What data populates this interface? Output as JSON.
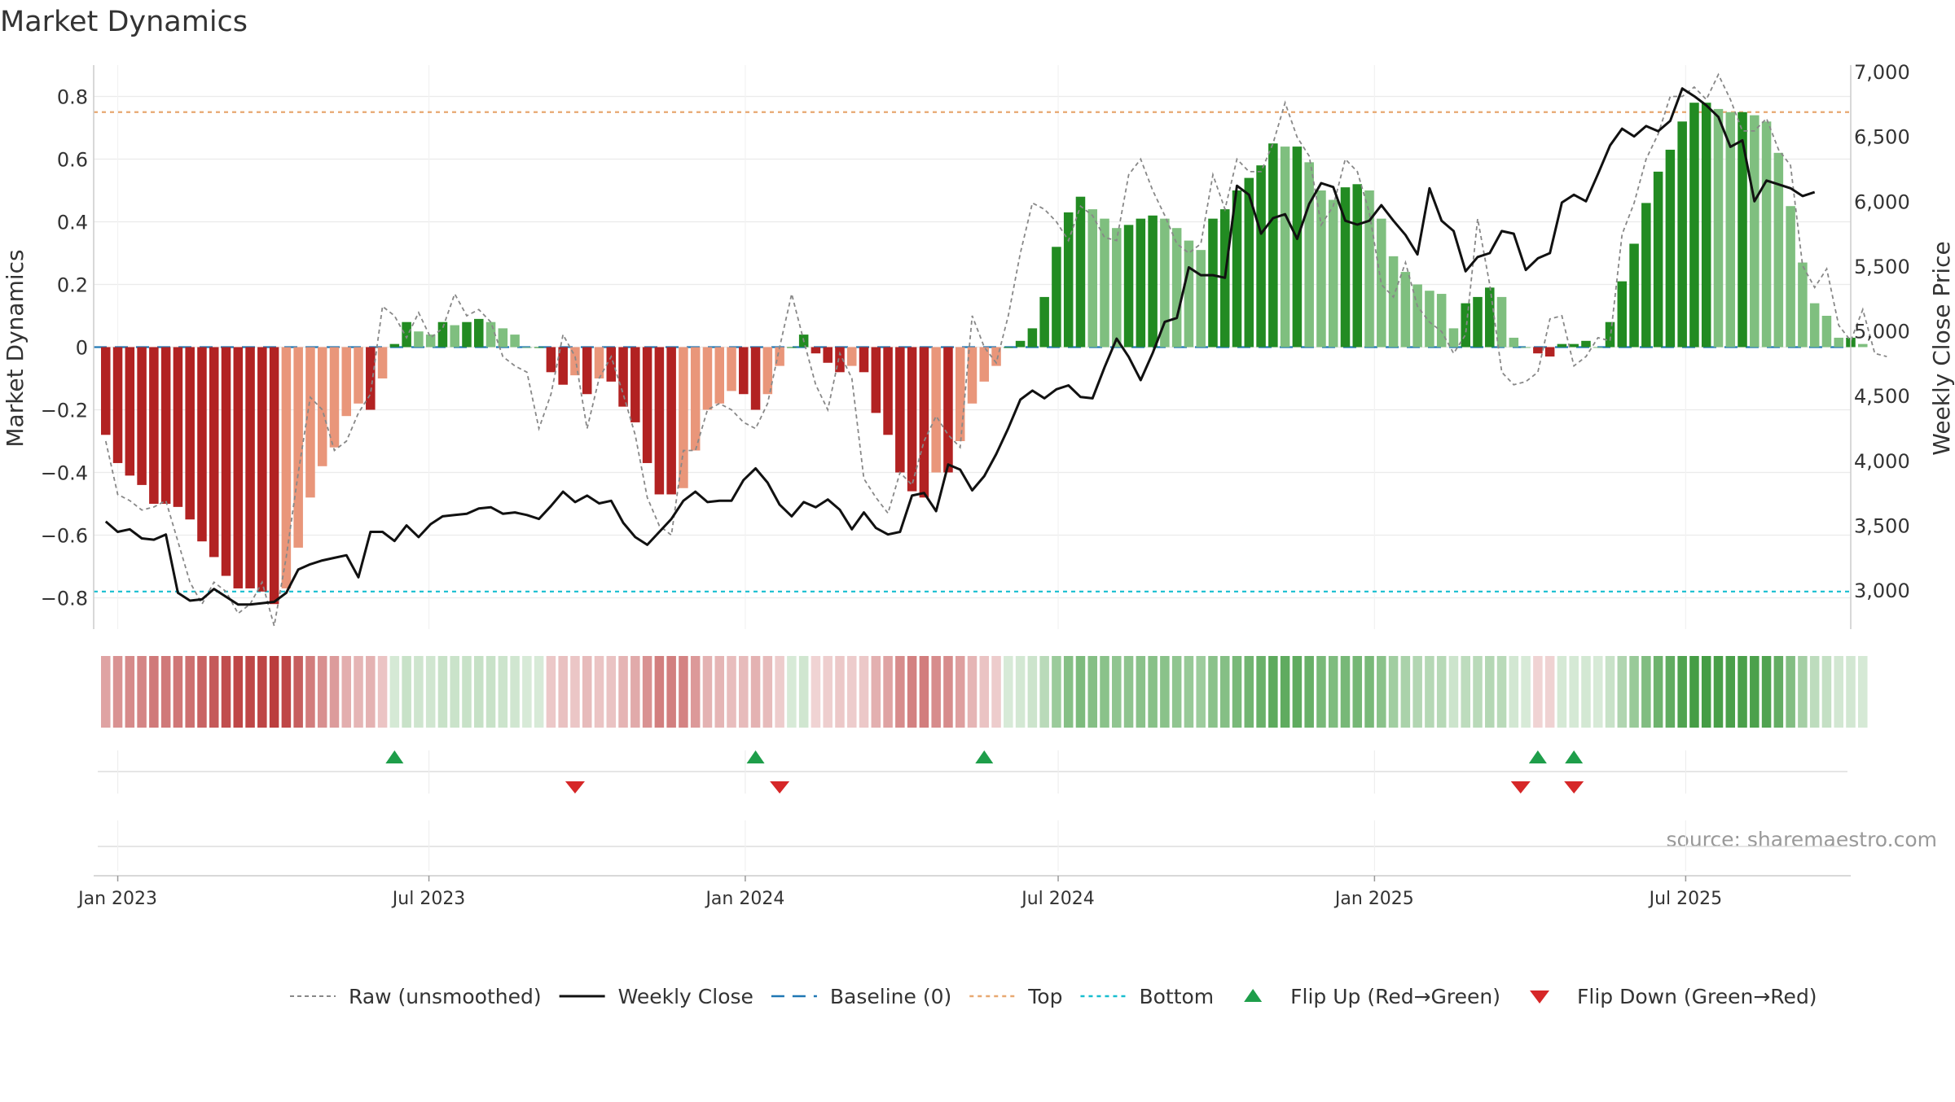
{
  "title": "Market Dynamics",
  "source": "source: sharemaestro.com",
  "colors": {
    "deep_red": "#b22222",
    "light_red": "#e9967a",
    "deep_green": "#228b22",
    "light_green": "#7fbf7f",
    "close_line": "#111111",
    "raw_line": "#888888",
    "baseline": "#1f77b4",
    "top": "#e8a870",
    "bottom": "#17becf",
    "flip_up": "#1e9e4a",
    "flip_down": "#d62728"
  },
  "chart_data": {
    "type": "bar",
    "title": "Market Dynamics",
    "xlabel": "",
    "ylabel": "Market Dynamics",
    "y2label": "Weekly Close Price",
    "ylim": [
      -0.9,
      0.9
    ],
    "y2lim": [
      2700,
      7050
    ],
    "yticks": [
      "0.8",
      "0.6",
      "0.4",
      "0.2",
      "0",
      "−0.2",
      "−0.4",
      "−0.6",
      "−0.8"
    ],
    "y2ticks": [
      "7,000",
      "6,500",
      "6,000",
      "5,500",
      "5,000",
      "4,500",
      "4,000",
      "3,500",
      "3,000"
    ],
    "xticks": [
      "Jan 2023",
      "Jul 2023",
      "Jan 2024",
      "Jul 2024",
      "Jan 2025",
      "Jul 2025"
    ],
    "xtick_dates": [
      "2023-01-01",
      "2023-07-01",
      "2024-01-01",
      "2024-07-01",
      "2025-01-01",
      "2025-07-01"
    ],
    "xlim": [
      "2022-12-18",
      "2025-10-05"
    ],
    "first_week": "2022-12-25",
    "top": 0.75,
    "bottom": -0.78,
    "baseline": 0,
    "grid": true,
    "legend_position": "bottom-center",
    "legend": [
      {
        "label": "Raw (unsmoothed)",
        "kind": "raw"
      },
      {
        "label": "Weekly Close",
        "kind": "close"
      },
      {
        "label": "Baseline (0)",
        "kind": "baseline"
      },
      {
        "label": "Top",
        "kind": "top"
      },
      {
        "label": "Bottom",
        "kind": "bottom"
      },
      {
        "label": "Flip Up (Red→Green)",
        "kind": "flipup"
      },
      {
        "label": "Flip Down (Green→Red)",
        "kind": "flipdown"
      }
    ],
    "dynamics": [
      -0.28,
      -0.37,
      -0.41,
      -0.44,
      -0.5,
      -0.5,
      -0.51,
      -0.55,
      -0.62,
      -0.67,
      -0.73,
      -0.77,
      -0.77,
      -0.78,
      -0.82,
      -0.77,
      -0.64,
      -0.48,
      -0.38,
      -0.32,
      -0.22,
      -0.18,
      -0.2,
      -0.1,
      0.01,
      0.08,
      0.05,
      0.04,
      0.08,
      0.07,
      0.08,
      0.09,
      0.08,
      0.06,
      0.04,
      0.0,
      0.0,
      -0.08,
      -0.12,
      -0.09,
      -0.15,
      -0.1,
      -0.11,
      -0.19,
      -0.24,
      -0.37,
      -0.47,
      -0.47,
      -0.45,
      -0.33,
      -0.2,
      -0.18,
      -0.14,
      -0.15,
      -0.2,
      -0.15,
      -0.06,
      0.0,
      0.04,
      -0.02,
      -0.05,
      -0.08,
      -0.06,
      -0.08,
      -0.21,
      -0.28,
      -0.4,
      -0.46,
      -0.48,
      -0.4,
      -0.4,
      -0.3,
      -0.18,
      -0.11,
      -0.06,
      0.0,
      0.02,
      0.06,
      0.16,
      0.32,
      0.43,
      0.48,
      0.44,
      0.41,
      0.38,
      0.39,
      0.41,
      0.42,
      0.41,
      0.38,
      0.34,
      0.31,
      0.41,
      0.44,
      0.5,
      0.54,
      0.58,
      0.65,
      0.64,
      0.64,
      0.59,
      0.5,
      0.47,
      0.51,
      0.52,
      0.5,
      0.41,
      0.29,
      0.24,
      0.2,
      0.18,
      0.17,
      0.06,
      0.14,
      0.16,
      0.19,
      0.16,
      0.03,
      0.0,
      -0.02,
      -0.03,
      0.01,
      0.01,
      0.02,
      0.0,
      0.08,
      0.21,
      0.33,
      0.46,
      0.56,
      0.63,
      0.72,
      0.78,
      0.78,
      0.76,
      0.75,
      0.75,
      0.74,
      0.72,
      0.62,
      0.45,
      0.27,
      0.14,
      0.1,
      0.03,
      0.03,
      0.01
    ],
    "raw": [
      -0.3,
      -0.47,
      -0.49,
      -0.52,
      -0.51,
      -0.49,
      -0.62,
      -0.75,
      -0.82,
      -0.75,
      -0.78,
      -0.85,
      -0.82,
      -0.75,
      -0.89,
      -0.67,
      -0.4,
      -0.16,
      -0.2,
      -0.33,
      -0.3,
      -0.21,
      -0.15,
      0.13,
      0.1,
      0.03,
      0.11,
      0.03,
      0.06,
      0.17,
      0.1,
      0.12,
      0.08,
      -0.03,
      -0.06,
      -0.08,
      -0.26,
      -0.15,
      0.04,
      -0.03,
      -0.26,
      -0.1,
      -0.03,
      -0.15,
      -0.28,
      -0.48,
      -0.57,
      -0.6,
      -0.33,
      -0.33,
      -0.2,
      -0.18,
      -0.2,
      -0.24,
      -0.26,
      -0.18,
      0.0,
      0.17,
      0.02,
      -0.12,
      -0.2,
      -0.02,
      -0.1,
      -0.42,
      -0.48,
      -0.53,
      -0.4,
      -0.44,
      -0.3,
      -0.22,
      -0.28,
      -0.32,
      0.1,
      0.0,
      -0.05,
      0.1,
      0.3,
      0.46,
      0.44,
      0.4,
      0.34,
      0.45,
      0.42,
      0.35,
      0.34,
      0.55,
      0.6,
      0.5,
      0.42,
      0.33,
      0.3,
      0.33,
      0.55,
      0.44,
      0.6,
      0.56,
      0.56,
      0.65,
      0.78,
      0.67,
      0.61,
      0.39,
      0.45,
      0.6,
      0.56,
      0.43,
      0.2,
      0.16,
      0.27,
      0.13,
      0.08,
      0.05,
      -0.02,
      0.04,
      0.41,
      0.2,
      -0.08,
      -0.12,
      -0.11,
      -0.08,
      0.09,
      0.1,
      -0.06,
      -0.03,
      0.03,
      0.02,
      0.36,
      0.46,
      0.6,
      0.68,
      0.8,
      0.8,
      0.83,
      0.79,
      0.87,
      0.79,
      0.69,
      0.69,
      0.73,
      0.63,
      0.58,
      0.26,
      0.19,
      0.25,
      0.07,
      0.02,
      0.12,
      -0.02,
      -0.03
    ],
    "close": [
      3530,
      3450,
      3470,
      3400,
      3390,
      3430,
      2980,
      2920,
      2930,
      3010,
      2950,
      2890,
      2890,
      2900,
      2910,
      2980,
      3160,
      3200,
      3230,
      3250,
      3270,
      3100,
      3450,
      3450,
      3380,
      3500,
      3410,
      3510,
      3570,
      3580,
      3590,
      3630,
      3640,
      3590,
      3600,
      3580,
      3550,
      3650,
      3760,
      3680,
      3730,
      3670,
      3690,
      3520,
      3410,
      3350,
      3450,
      3550,
      3690,
      3760,
      3680,
      3690,
      3690,
      3850,
      3940,
      3830,
      3660,
      3570,
      3680,
      3640,
      3700,
      3620,
      3470,
      3600,
      3480,
      3430,
      3450,
      3730,
      3750,
      3610,
      3970,
      3930,
      3770,
      3880,
      4050,
      4250,
      4470,
      4540,
      4480,
      4550,
      4580,
      4490,
      4480,
      4720,
      4940,
      4800,
      4620,
      4830,
      5070,
      5100,
      5490,
      5430,
      5430,
      5410,
      6120,
      6050,
      5750,
      5870,
      5900,
      5710,
      5980,
      6140,
      6110,
      5850,
      5820,
      5850,
      5970,
      5850,
      5740,
      5590,
      6100,
      5850,
      5770,
      5460,
      5570,
      5600,
      5770,
      5750,
      5470,
      5560,
      5600,
      5990,
      6050,
      6000,
      6210,
      6430,
      6560,
      6500,
      6580,
      6540,
      6620,
      6870,
      6810,
      6740,
      6650,
      6420,
      6470,
      6000,
      6160,
      6130,
      6100,
      6040,
      6070
    ],
    "flip_up": [
      "2023-06-11",
      "2024-01-07",
      "2024-05-19",
      "2025-04-06",
      "2025-04-27"
    ],
    "flip_down": [
      "2023-09-24",
      "2024-01-21",
      "2025-03-27",
      "2025-04-27"
    ]
  }
}
